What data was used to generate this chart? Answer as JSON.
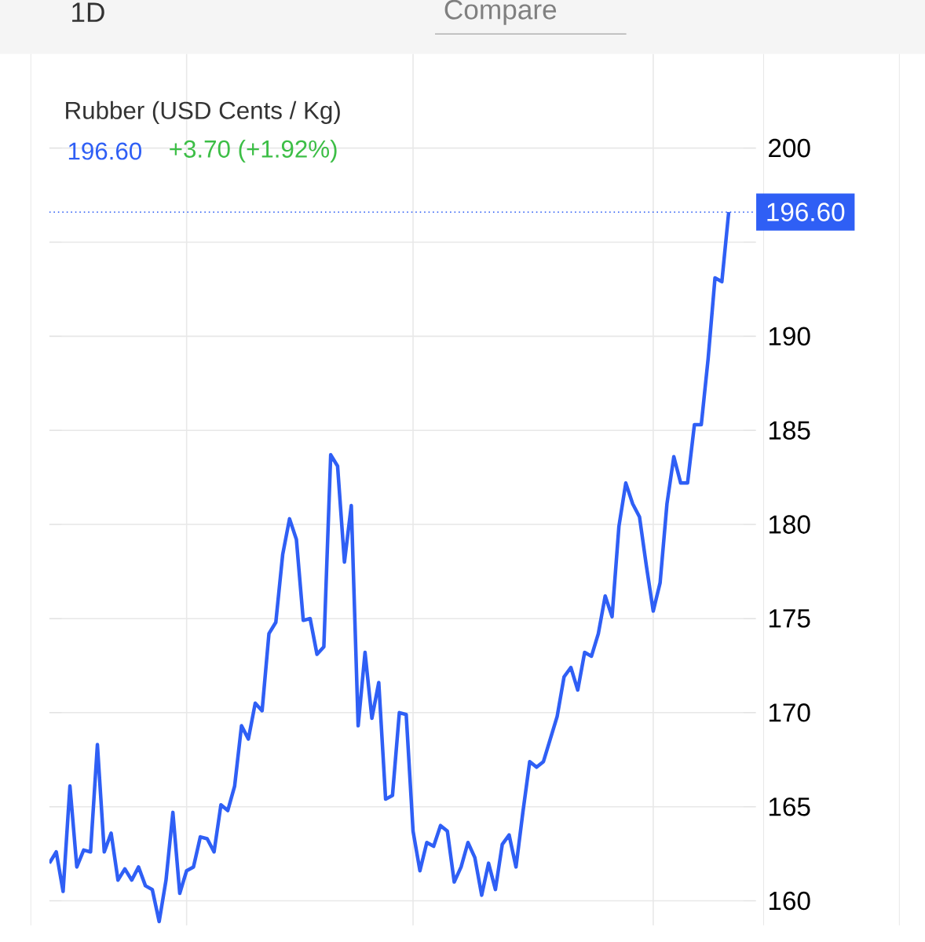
{
  "chart_data": {
    "type": "line",
    "title": "Rubber (USD Cents / Kg)",
    "subtitle": "196.60",
    "annotations": [
      "+3.70 (+1.92%)",
      "1D",
      "Compare"
    ],
    "categories": [
      null,
      null,
      null,
      null,
      null,
      null,
      null,
      null,
      null,
      null,
      null,
      null,
      null,
      null,
      null,
      null,
      null,
      null,
      null,
      null,
      null,
      null,
      null,
      null,
      null,
      null,
      null,
      null,
      null,
      null,
      null,
      null,
      null,
      null,
      null,
      null,
      null,
      null,
      null,
      null,
      null,
      null,
      null,
      null,
      null,
      null,
      null,
      null,
      null,
      null,
      null,
      null,
      null,
      null,
      null,
      null,
      null,
      null,
      null,
      null,
      null,
      null,
      null,
      null,
      null,
      null,
      null,
      null,
      null,
      null,
      null,
      null,
      null,
      null,
      null,
      null,
      null,
      null,
      null,
      null,
      null,
      null,
      null,
      null,
      null,
      null,
      null,
      null,
      null,
      null,
      null,
      null,
      null,
      null,
      null,
      null,
      null,
      null,
      null,
      null
    ],
    "series": [
      {
        "color": "#2f5ff5",
        "values": [
          162.0,
          162.6,
          160.5,
          166.1,
          161.8,
          162.7,
          162.6,
          168.3,
          162.6,
          163.6,
          161.1,
          161.7,
          161.1,
          161.8,
          160.8,
          160.6,
          158.9,
          161.1,
          164.7,
          160.4,
          161.6,
          161.8,
          163.4,
          163.3,
          162.6,
          165.1,
          164.8,
          166.1,
          169.3,
          168.6,
          170.5,
          170.1,
          174.2,
          174.8,
          178.4,
          180.3,
          179.2,
          174.9,
          175.0,
          173.1,
          173.5,
          183.7,
          183.1,
          178.0,
          181.0,
          169.3,
          173.2,
          169.7,
          171.6,
          165.4,
          165.6,
          170.0,
          169.9,
          163.7,
          161.6,
          163.1,
          162.9,
          164.0,
          163.7,
          161.0,
          161.8,
          163.1,
          162.3,
          160.3,
          162.0,
          160.6,
          163.0,
          163.5,
          161.8,
          164.7,
          167.4,
          167.1,
          167.4,
          168.6,
          169.8,
          171.9,
          172.4,
          171.2,
          173.2,
          173.0,
          174.2,
          176.2,
          175.1,
          179.9,
          182.2,
          181.1,
          180.4,
          177.8,
          175.4,
          176.9,
          181.1,
          183.6,
          182.2,
          182.2,
          185.3,
          185.3,
          188.8,
          193.1,
          192.9,
          196.6
        ]
      }
    ],
    "ylim": [
      158.7,
      205
    ],
    "yticks": [
      160,
      165,
      170,
      175,
      180,
      185,
      190,
      {
        "value": 195,
        "label": null
      },
      200
    ],
    "ref_lines": [
      {
        "axis": "y",
        "value": 196.6,
        "label": "196.60",
        "color": "#2f5ff5",
        "line_style": "dotted"
      }
    ],
    "grid": true,
    "tick_labels": "y",
    "marker": "none",
    "line_style": "solid"
  }
}
